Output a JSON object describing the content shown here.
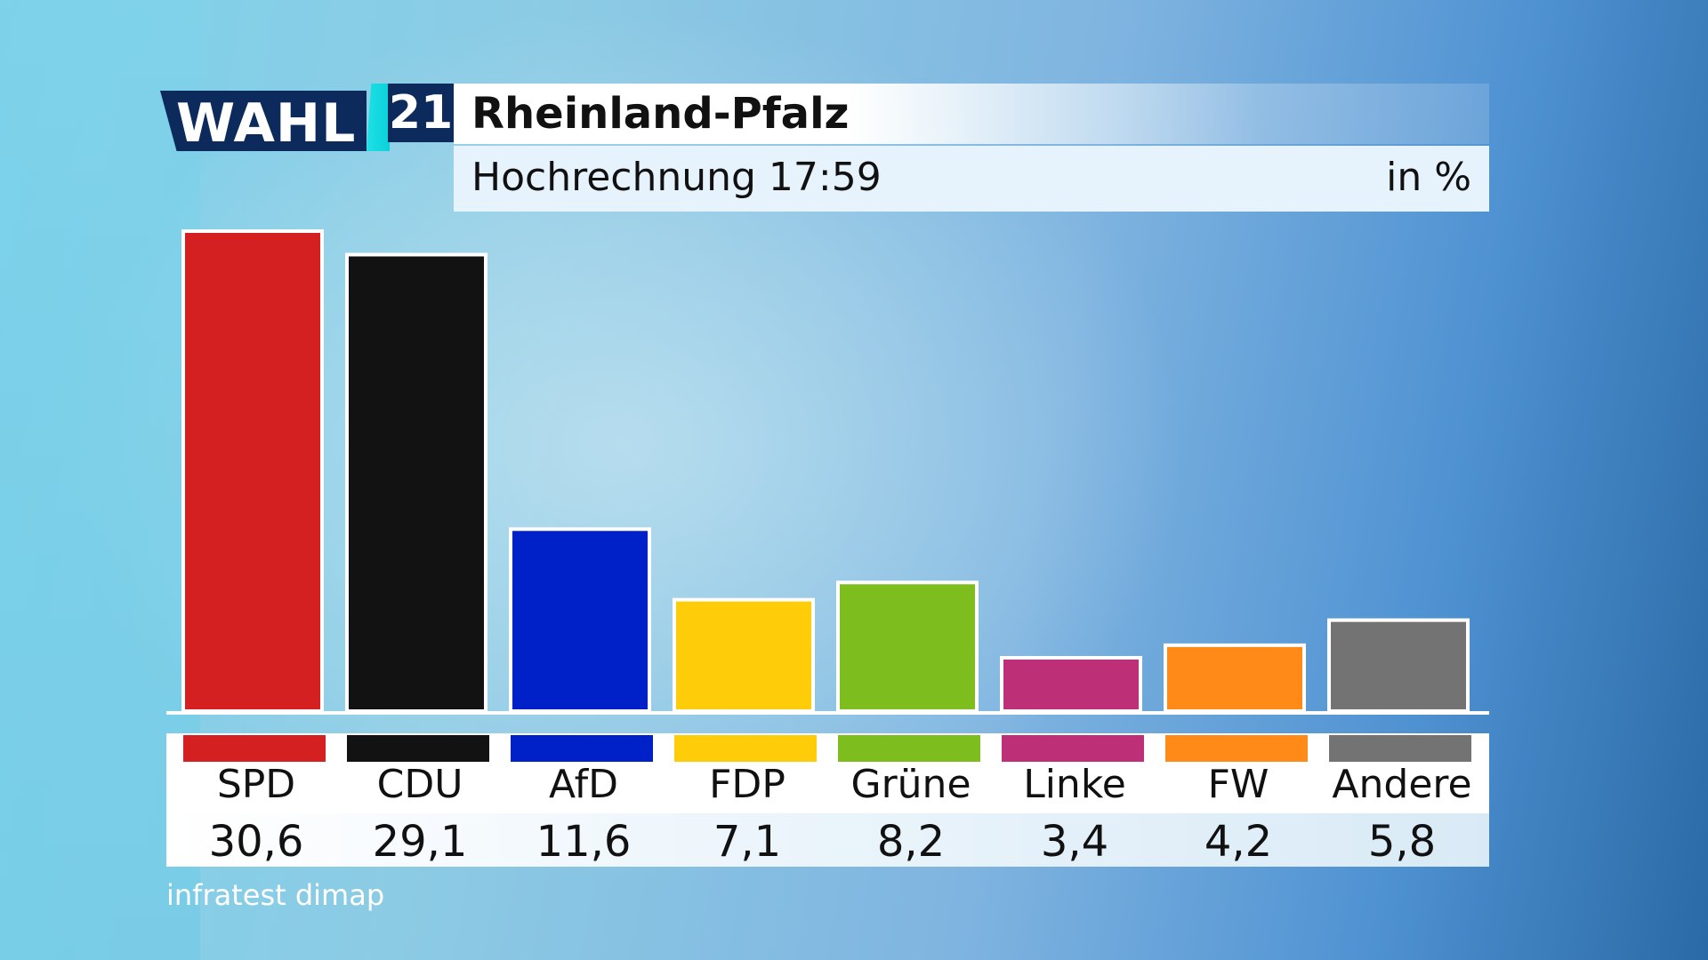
{
  "logo": {
    "word": "WAHL",
    "number": "21"
  },
  "header": {
    "title": "Rheinland-Pfalz",
    "subtitle": "Hochrechnung 17:59",
    "unit": "in %"
  },
  "source": "infratest dimap",
  "colors": {
    "SPD": "#d42020",
    "CDU": "#121212",
    "AfD": "#0021c8",
    "FDP": "#ffcc0a",
    "Grüne": "#7dbd1e",
    "Linke": "#bd2f76",
    "FW": "#ff8a17",
    "Andere": "#737373"
  },
  "chart_data": {
    "type": "bar",
    "title": "Rheinland-Pfalz",
    "subtitle": "Hochrechnung 17:59",
    "ylabel": "in %",
    "categories": [
      "SPD",
      "CDU",
      "AfD",
      "FDP",
      "Grüne",
      "Linke",
      "FW",
      "Andere"
    ],
    "values": [
      30.6,
      29.1,
      11.6,
      7.1,
      8.2,
      3.4,
      4.2,
      5.8
    ],
    "value_labels": [
      "30,6",
      "29,1",
      "11,6",
      "7,1",
      "8,2",
      "3,4",
      "4,2",
      "5,8"
    ],
    "ylim": [
      0,
      30.6
    ],
    "grid": false,
    "legend": "bottom"
  }
}
